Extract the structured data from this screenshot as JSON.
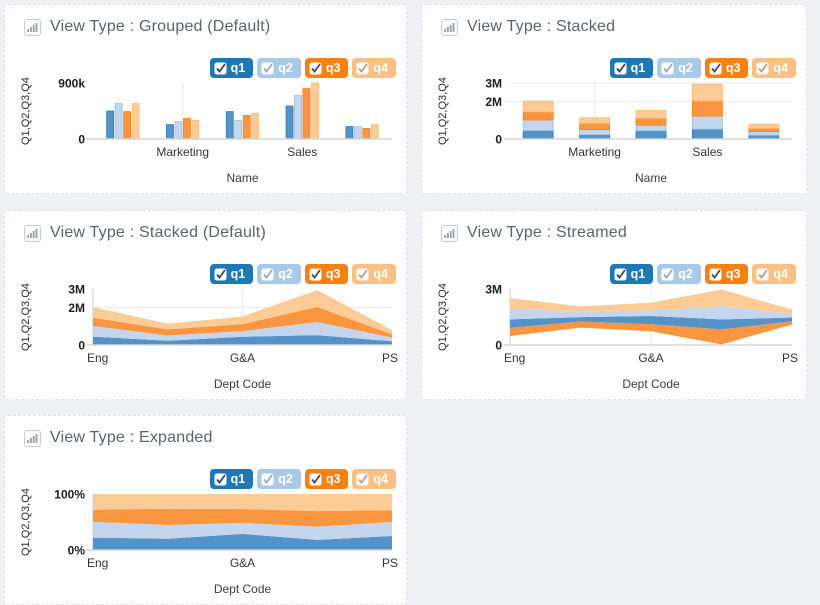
{
  "colors": {
    "page_bg": "#eef0f3",
    "panel_bg": "#ffffff",
    "panel_border": "#e7dfdf",
    "title_color": "#5a646e",
    "axis_line": "#d6d6d6",
    "grid_line": "#e9e9e9",
    "area_axis": "#c9ced3"
  },
  "series_meta": [
    {
      "label": "q1",
      "checked": true,
      "badge_color": "#1f77b4",
      "fill": "#5493c8",
      "stroke": "#2f7ab7",
      "check_color": "#35465a",
      "text_color": "#ffffff"
    },
    {
      "label": "q2",
      "checked": true,
      "badge_color": "#aac8e8",
      "fill": "#c3d6ee",
      "stroke": "#9fc0e2",
      "check_color": "#9aa8ba",
      "text_color": "#ffffff"
    },
    {
      "label": "q3",
      "checked": true,
      "badge_color": "#f8810f",
      "fill": "#f9963f",
      "stroke": "#f8820f",
      "check_color": "#4a4a55",
      "text_color": "#ffffff"
    },
    {
      "label": "q4",
      "checked": true,
      "badge_color": "#fcc083",
      "fill": "#fccb96",
      "stroke": "#fbbd7f",
      "check_color": "#b3a08a",
      "text_color": "#ffffff"
    }
  ],
  "panels": [
    {
      "title": "View Type : Grouped (Default)"
    },
    {
      "title": "View Type : Stacked"
    },
    {
      "title": "View Type : Stacked (Default)"
    },
    {
      "title": "View Type : Streamed"
    },
    {
      "title": "View Type : Expanded"
    }
  ],
  "chart_data": [
    {
      "type": "bar",
      "variant": "grouped",
      "title": "View Type : Grouped (Default)",
      "categories": [
        "Eng",
        "Marketing",
        "G&A",
        "Sales",
        "PS"
      ],
      "tick_labels": [
        "",
        "Marketing",
        "",
        "Sales",
        ""
      ],
      "series": [
        {
          "name": "q1",
          "values": [
            450,
            230,
            440,
            530,
            200
          ]
        },
        {
          "name": "q2",
          "values": [
            570,
            280,
            300,
            700,
            200
          ]
        },
        {
          "name": "q3",
          "values": [
            440,
            330,
            380,
            810,
            170
          ]
        },
        {
          "name": "q4",
          "values": [
            570,
            300,
            410,
            900,
            230
          ]
        }
      ],
      "values_unit": "thousands",
      "xlabel": "Name",
      "ylabel": "Q1,Q2,Q3,Q4",
      "ylim": [
        0,
        900000
      ],
      "scale_max": 900,
      "yticks": [
        {
          "label": "900k",
          "value": 900
        },
        {
          "label": "0",
          "value": 0
        }
      ],
      "grid_v_categories": [
        1,
        3
      ],
      "grid_h_values": [],
      "legend_position": "top-right"
    },
    {
      "type": "bar",
      "variant": "stacked",
      "title": "View Type : Stacked",
      "categories": [
        "Eng",
        "Marketing",
        "G&A",
        "Sales",
        "PS"
      ],
      "tick_labels": [
        "",
        "Marketing",
        "",
        "Sales",
        ""
      ],
      "series": [
        {
          "name": "q1",
          "values": [
            450,
            230,
            440,
            530,
            200
          ]
        },
        {
          "name": "q2",
          "values": [
            570,
            280,
            300,
            700,
            200
          ]
        },
        {
          "name": "q3",
          "values": [
            440,
            330,
            380,
            810,
            170
          ]
        },
        {
          "name": "q4",
          "values": [
            570,
            300,
            410,
            900,
            230
          ]
        }
      ],
      "values_unit": "thousands",
      "xlabel": "Name",
      "ylabel": "Q1,Q2,Q3,Q4",
      "ylim": [
        0,
        3000000
      ],
      "scale_max": 3000,
      "yticks": [
        {
          "label": "3M",
          "value": 3000
        },
        {
          "label": "2M",
          "value": 2000
        },
        {
          "label": "0",
          "value": 0
        }
      ],
      "grid_v_categories": [
        1,
        3
      ],
      "grid_h_values": [
        3000,
        2000
      ],
      "legend_position": "top-right"
    },
    {
      "type": "area",
      "variant": "stacked",
      "title": "View Type : Stacked (Default)",
      "categories": [
        "Eng",
        "Marketing",
        "G&A",
        "Sales",
        "PS"
      ],
      "tick_labels": [
        "Eng",
        "",
        "G&A",
        "",
        "PS"
      ],
      "series": [
        {
          "name": "q1",
          "values": [
            450,
            230,
            440,
            530,
            200
          ]
        },
        {
          "name": "q2",
          "values": [
            570,
            280,
            300,
            700,
            200
          ]
        },
        {
          "name": "q3",
          "values": [
            440,
            330,
            380,
            810,
            170
          ]
        },
        {
          "name": "q4",
          "values": [
            570,
            300,
            410,
            900,
            230
          ]
        }
      ],
      "values_unit": "thousands",
      "xlabel": "Dept Code",
      "ylabel": "Q1,Q2,Q3,Q4",
      "ylim": [
        0,
        3000000
      ],
      "scale_max": 3000,
      "yticks": [
        {
          "label": "3M",
          "value": 3000
        },
        {
          "label": "2M",
          "value": 2000
        },
        {
          "label": "0",
          "value": 0
        }
      ],
      "grid_v_categories": [
        2
      ],
      "grid_h_values": [
        2000
      ],
      "legend_position": "top-right"
    },
    {
      "type": "area",
      "variant": "stream",
      "title": "View Type : Streamed",
      "categories": [
        "Eng",
        "Marketing",
        "G&A",
        "Sales",
        "PS"
      ],
      "tick_labels": [
        "Eng",
        "",
        "G&A",
        "",
        "PS"
      ],
      "series": [
        {
          "name": "q1",
          "values": [
            450,
            230,
            440,
            530,
            200
          ]
        },
        {
          "name": "q2",
          "values": [
            570,
            280,
            300,
            700,
            200
          ]
        },
        {
          "name": "q3",
          "values": [
            440,
            330,
            380,
            810,
            170
          ]
        },
        {
          "name": "q4",
          "values": [
            570,
            300,
            410,
            900,
            230
          ]
        }
      ],
      "layer_order": [
        "q3",
        "q1",
        "q2",
        "q4"
      ],
      "values_unit": "thousands",
      "xlabel": "Dept Code",
      "ylabel": "Q1,Q2,Q3,Q4",
      "ylim": [
        0,
        3000000
      ],
      "scale_max": 3000,
      "yticks": [
        {
          "label": "3M",
          "value": 3000
        },
        {
          "label": "0",
          "value": 0
        }
      ],
      "grid_v_categories": [
        2
      ],
      "grid_h_values": [],
      "legend_position": "top-right"
    },
    {
      "type": "area",
      "variant": "expanded",
      "title": "View Type : Expanded",
      "categories": [
        "Eng",
        "Marketing",
        "G&A",
        "Sales",
        "PS"
      ],
      "tick_labels": [
        "Eng",
        "",
        "G&A",
        "",
        "PS"
      ],
      "series": [
        {
          "name": "q1",
          "values": [
            450,
            230,
            440,
            530,
            200
          ]
        },
        {
          "name": "q2",
          "values": [
            570,
            280,
            300,
            700,
            200
          ]
        },
        {
          "name": "q3",
          "values": [
            440,
            330,
            380,
            810,
            170
          ]
        },
        {
          "name": "q4",
          "values": [
            570,
            300,
            410,
            900,
            230
          ]
        }
      ],
      "values_unit": "thousands (normalized to percent)",
      "xlabel": "Dept Code",
      "ylabel": "Q1,Q2,Q3,Q4",
      "ylim": [
        0,
        100
      ],
      "scale_max": 100,
      "yticks": [
        {
          "label": "100%",
          "value": 100
        },
        {
          "label": "0%",
          "value": 0
        }
      ],
      "grid_v_categories": [
        2
      ],
      "grid_h_values": [],
      "legend_position": "top-right"
    }
  ]
}
